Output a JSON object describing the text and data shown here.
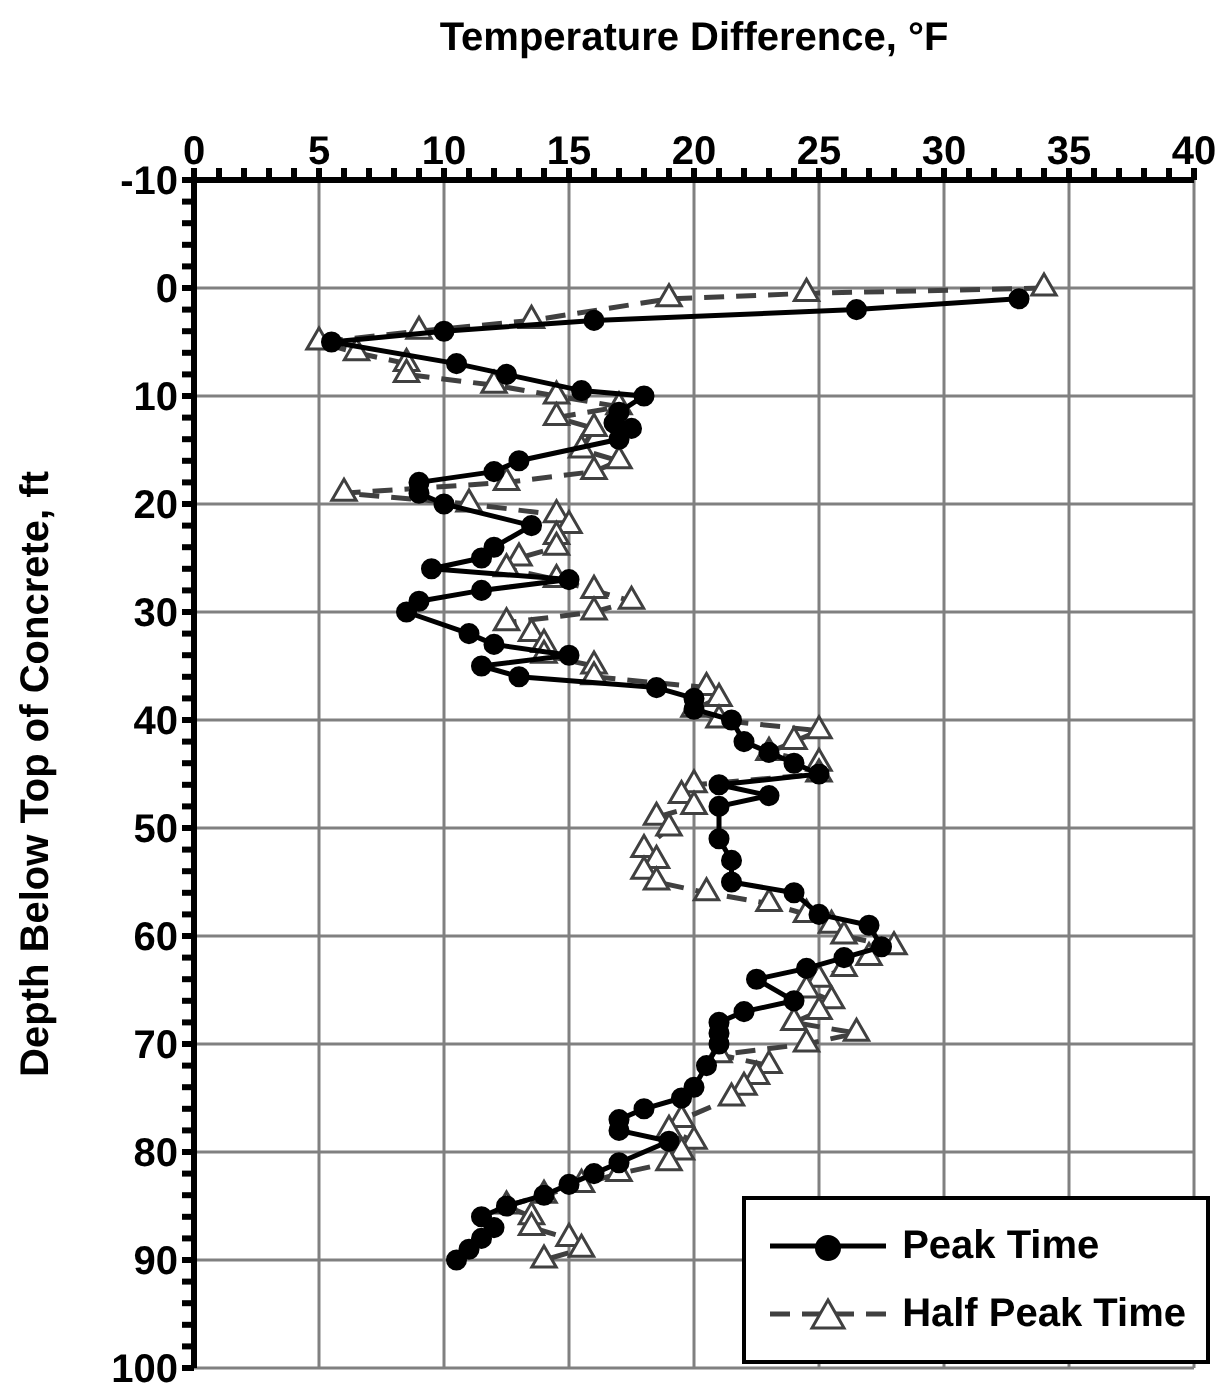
{
  "chart_data": {
    "type": "line",
    "xlabel": "Temperature Difference, °F",
    "ylabel": "Depth Below Top of Concrete, ft",
    "xlim": [
      0,
      40
    ],
    "xticks": [
      0,
      {
        "value": 1,
        "label": null
      },
      {
        "value": 2,
        "label": null
      },
      {
        "value": 3,
        "label": null
      },
      {
        "value": 4,
        "label": null
      },
      5,
      {
        "value": 6,
        "label": null
      },
      {
        "value": 7,
        "label": null
      },
      {
        "value": 8,
        "label": null
      },
      {
        "value": 9,
        "label": null
      },
      10,
      {
        "value": 11,
        "label": null
      },
      {
        "value": 12,
        "label": null
      },
      {
        "value": 13,
        "label": null
      },
      {
        "value": 14,
        "label": null
      },
      15,
      {
        "value": 16,
        "label": null
      },
      {
        "value": 17,
        "label": null
      },
      {
        "value": 18,
        "label": null
      },
      {
        "value": 19,
        "label": null
      },
      20,
      {
        "value": 21,
        "label": null
      },
      {
        "value": 22,
        "label": null
      },
      {
        "value": 23,
        "label": null
      },
      {
        "value": 24,
        "label": null
      },
      25,
      {
        "value": 26,
        "label": null
      },
      {
        "value": 27,
        "label": null
      },
      {
        "value": 28,
        "label": null
      },
      {
        "value": 29,
        "label": null
      },
      30,
      {
        "value": 31,
        "label": null
      },
      {
        "value": 32,
        "label": null
      },
      {
        "value": 33,
        "label": null
      },
      {
        "value": 34,
        "label": null
      },
      35,
      {
        "value": 36,
        "label": null
      },
      {
        "value": 37,
        "label": null
      },
      {
        "value": 38,
        "label": null
      },
      {
        "value": 39,
        "label": null
      },
      40
    ],
    "ylim": [
      100,
      -10
    ],
    "yticks": [
      -10,
      {
        "value": -8,
        "label": null
      },
      {
        "value": -6,
        "label": null
      },
      {
        "value": -4,
        "label": null
      },
      {
        "value": -2,
        "label": null
      },
      0,
      {
        "value": 2,
        "label": null
      },
      {
        "value": 4,
        "label": null
      },
      {
        "value": 6,
        "label": null
      },
      {
        "value": 8,
        "label": null
      },
      10,
      {
        "value": 12,
        "label": null
      },
      {
        "value": 14,
        "label": null
      },
      {
        "value": 16,
        "label": null
      },
      {
        "value": 18,
        "label": null
      },
      20,
      {
        "value": 22,
        "label": null
      },
      {
        "value": 24,
        "label": null
      },
      {
        "value": 26,
        "label": null
      },
      {
        "value": 28,
        "label": null
      },
      30,
      {
        "value": 32,
        "label": null
      },
      {
        "value": 34,
        "label": null
      },
      {
        "value": 36,
        "label": null
      },
      {
        "value": 38,
        "label": null
      },
      40,
      {
        "value": 42,
        "label": null
      },
      {
        "value": 44,
        "label": null
      },
      {
        "value": 46,
        "label": null
      },
      {
        "value": 48,
        "label": null
      },
      50,
      {
        "value": 52,
        "label": null
      },
      {
        "value": 54,
        "label": null
      },
      {
        "value": 56,
        "label": null
      },
      {
        "value": 58,
        "label": null
      },
      60,
      {
        "value": 62,
        "label": null
      },
      {
        "value": 64,
        "label": null
      },
      {
        "value": 66,
        "label": null
      },
      {
        "value": 68,
        "label": null
      },
      70,
      {
        "value": 72,
        "label": null
      },
      {
        "value": 74,
        "label": null
      },
      {
        "value": 76,
        "label": null
      },
      {
        "value": 78,
        "label": null
      },
      80,
      {
        "value": 82,
        "label": null
      },
      {
        "value": 84,
        "label": null
      },
      {
        "value": 86,
        "label": null
      },
      {
        "value": 88,
        "label": null
      },
      90,
      {
        "value": 92,
        "label": null
      },
      {
        "value": 94,
        "label": null
      },
      {
        "value": 96,
        "label": null
      },
      {
        "value": 98,
        "label": null
      },
      100
    ],
    "grid": true,
    "legend": "bottom right",
    "series": [
      {
        "name": "Peak Time",
        "color": "#000000",
        "marker": "circle",
        "line_style": "solid",
        "x": [
          33,
          26.5,
          16,
          10,
          5.5,
          10.5,
          12.5,
          15.5,
          18,
          17,
          16.8,
          17.5,
          17,
          13,
          12,
          9,
          9,
          10,
          13.5,
          12,
          11.5,
          9.5,
          15,
          11.5,
          9,
          8.5,
          11,
          12,
          15,
          11.5,
          13,
          18.5,
          20,
          20,
          21.5,
          22,
          23,
          24,
          25,
          21,
          23,
          21,
          21,
          21.5,
          21.5,
          24,
          25,
          27,
          27.5,
          26,
          24.5,
          22.5,
          24,
          22,
          21,
          21,
          21,
          20.5,
          20,
          19.5,
          18,
          17,
          17,
          19,
          17,
          16,
          15,
          14,
          12.5,
          11.5,
          12,
          11.5,
          11,
          10.5
        ],
        "values": [
          1,
          2,
          3,
          4,
          5,
          7,
          8,
          9.5,
          10,
          11.5,
          12.5,
          13,
          14,
          16,
          17,
          18,
          19,
          20,
          22,
          24,
          25,
          26,
          27,
          28,
          29,
          30,
          32,
          33,
          34,
          35,
          36,
          37,
          38,
          39,
          40,
          42,
          43,
          44,
          45,
          46,
          47,
          48,
          51,
          53,
          55,
          56,
          58,
          59,
          61,
          62,
          63,
          64,
          66,
          67,
          68,
          69,
          70,
          72,
          74,
          75,
          76,
          77,
          78,
          79,
          81,
          82,
          83,
          84,
          85,
          86,
          87,
          88,
          89,
          90
        ]
      },
      {
        "name": "Half Peak Time",
        "color": "#404040",
        "marker": "triangle",
        "line_style": "dashed",
        "x": [
          34,
          24.5,
          19,
          13.5,
          9,
          5,
          6.5,
          8.5,
          8.5,
          12,
          14.5,
          17,
          14.5,
          16,
          15.5,
          17,
          16,
          12.5,
          6,
          11,
          14.5,
          15,
          14.5,
          14.5,
          13,
          12.5,
          14.5,
          16,
          17.5,
          16,
          12.5,
          13.5,
          14,
          14,
          16,
          16,
          20.5,
          21,
          20,
          21,
          25,
          24,
          23,
          25,
          25,
          20,
          19.5,
          20,
          18.5,
          19,
          18,
          18.5,
          18,
          18.5,
          20.5,
          23,
          24.5,
          25.5,
          26,
          28,
          27,
          26,
          25,
          24.5,
          25.5,
          25,
          24,
          26.5,
          24.5,
          21,
          23,
          22.5,
          22,
          21.5,
          19.5,
          19,
          20,
          19.5,
          19,
          17,
          15.5,
          14,
          12.5,
          13.5,
          13.5,
          15,
          15.5,
          14
        ],
        "values": [
          0,
          0.5,
          1,
          3,
          4,
          5,
          6,
          7,
          8,
          9,
          10,
          11,
          12,
          13,
          15,
          16,
          17,
          18,
          19,
          20,
          21,
          22,
          23,
          24,
          25,
          26,
          27,
          28,
          29,
          30,
          31,
          32,
          33,
          34,
          35,
          36,
          37,
          38,
          39,
          40,
          41,
          42,
          43,
          44,
          45,
          46,
          47,
          48,
          49,
          50,
          52,
          53,
          54,
          55,
          56,
          57,
          58,
          59,
          60,
          61,
          62,
          63,
          64,
          65,
          66,
          67,
          68,
          69,
          70,
          71,
          72,
          73,
          74,
          75,
          77,
          78,
          79,
          80,
          81,
          82,
          83,
          84,
          85,
          86,
          87,
          88,
          89,
          90
        ]
      }
    ]
  }
}
